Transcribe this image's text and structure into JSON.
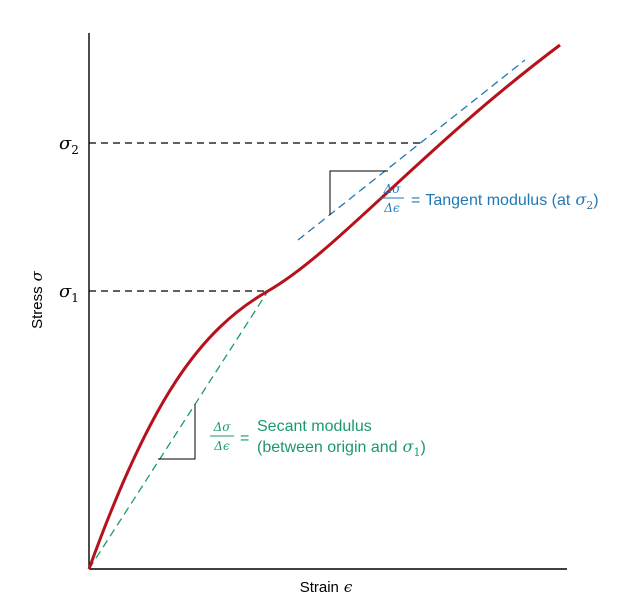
{
  "axes": {
    "y_label_main": "Stress",
    "y_label_symbol": "σ",
    "x_label_main": "Strain",
    "x_label_symbol": "ϵ"
  },
  "markers": {
    "sigma2": {
      "base": "σ",
      "sub": "2"
    },
    "sigma1": {
      "base": "σ",
      "sub": "1"
    }
  },
  "tangent": {
    "frac_num": "Δσ",
    "frac_den": "Δϵ",
    "eq": "=",
    "text": "Tangent modulus (at",
    "sym_base": "σ",
    "sym_sub": "2",
    "close": ")"
  },
  "secant": {
    "frac_num": "Δσ",
    "frac_den": "Δϵ",
    "eq": "=",
    "line1": "Secant modulus",
    "line2_text": "(between origin and",
    "sym_base": "σ",
    "sym_sub": "1",
    "close": ")"
  },
  "colors": {
    "curve": "#b5121b",
    "tangent": "#1f78b4",
    "secant": "#1a9a6c",
    "axis": "#000000"
  }
}
